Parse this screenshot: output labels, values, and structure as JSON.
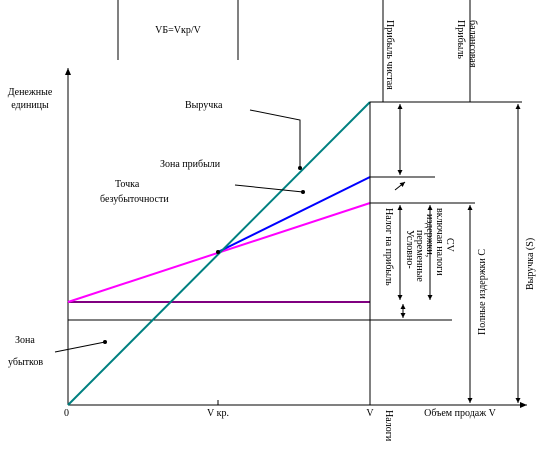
{
  "header": {
    "formula": "VБ=Vкр/V"
  },
  "axes": {
    "y_label": [
      "Денежные",
      "единицы"
    ],
    "x_label": "Объем продаж V",
    "origin": "0",
    "v_kr": "V кр.",
    "v": "V"
  },
  "labels": {
    "revenue": "Выручка",
    "profit_zone": "Зона прибыли",
    "break_even": [
      "Точка",
      "безубыточности"
    ],
    "loss_zone": [
      "Зона",
      "убытков"
    ]
  },
  "dimensions": {
    "net_profit": "Прибыль чистая",
    "balance_profit": [
      "Прибыль",
      "балансовая"
    ],
    "profit_tax": "Налог на прибыль",
    "variable_costs": [
      "Условно-",
      "переменные",
      "издержки,",
      "включая налоги",
      "CV"
    ],
    "full_costs": "Полные издержки C",
    "revenue_s": "Выручка (S)",
    "taxes": "Налоги"
  }
}
